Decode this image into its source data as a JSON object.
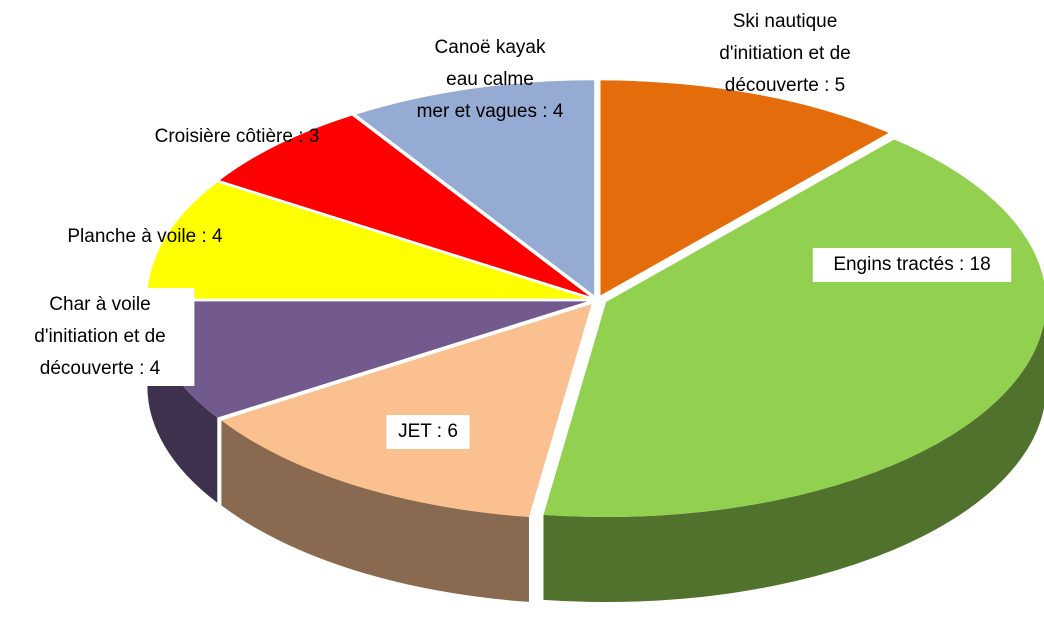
{
  "chart_data": {
    "type": "pie",
    "labels": [
      [
        "Ski nautique",
        "d'initiation et de",
        "découverte : 5"
      ],
      [
        "Engins tractés : 18"
      ],
      [
        "JET : 6"
      ],
      [
        "Char à voile",
        "d'initiation et de",
        "découverte : 4"
      ],
      [
        "Planche à voile : 4"
      ],
      [
        "Croisière côtière : 3"
      ],
      [
        "Canoë kayak",
        "eau calme",
        "mer et vagues : 4"
      ]
    ],
    "values": [
      5,
      18,
      6,
      4,
      4,
      3,
      4
    ],
    "colors": [
      "#e46c0a",
      "#92d050",
      "#fac090",
      "#725a8e",
      "#ffff00",
      "#ff0000",
      "#95abd3"
    ]
  }
}
